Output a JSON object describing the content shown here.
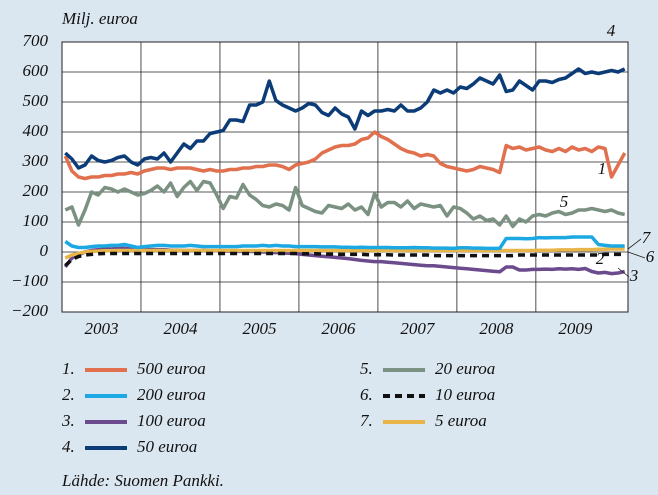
{
  "chart_data": {
    "type": "line",
    "y_label": "Milj. euroa",
    "source": "Lähde: Suomen Pankki.",
    "categories": [
      "2003",
      null,
      null,
      null,
      null,
      null,
      null,
      null,
      null,
      null,
      null,
      null,
      "2004",
      null,
      null,
      null,
      null,
      null,
      null,
      null,
      null,
      null,
      null,
      null,
      "2005",
      null,
      null,
      null,
      null,
      null,
      null,
      null,
      null,
      null,
      null,
      null,
      "2006",
      null,
      null,
      null,
      null,
      null,
      null,
      null,
      null,
      null,
      null,
      null,
      "2007",
      null,
      null,
      null,
      null,
      null,
      null,
      null,
      null,
      null,
      null,
      null,
      "2008",
      null,
      null,
      null,
      null,
      null,
      null,
      null,
      null,
      null,
      null,
      null,
      "2009",
      null,
      null,
      null,
      null,
      null,
      null,
      null,
      null,
      null,
      null,
      null,
      null,
      null
    ],
    "ylim": [
      -200,
      700
    ],
    "yticks": [
      {
        "value": -200,
        "label": "−200"
      },
      {
        "value": -100,
        "label": "−100"
      },
      0,
      100,
      200,
      300,
      400,
      500,
      600,
      700
    ],
    "grid": true,
    "series": [
      {
        "key": "1.",
        "annotation": "1",
        "name": "500 euroa",
        "color": "#e0704e",
        "dashed": false,
        "values": [
          320,
          270,
          250,
          245,
          250,
          250,
          255,
          255,
          260,
          260,
          265,
          260,
          270,
          275,
          280,
          280,
          275,
          280,
          280,
          280,
          275,
          270,
          275,
          270,
          270,
          275,
          275,
          280,
          280,
          285,
          285,
          290,
          290,
          285,
          275,
          290,
          295,
          300,
          310,
          330,
          340,
          350,
          355,
          355,
          360,
          375,
          380,
          400,
          385,
          375,
          360,
          345,
          335,
          330,
          320,
          325,
          320,
          295,
          285,
          280,
          275,
          270,
          275,
          285,
          280,
          275,
          265,
          355,
          345,
          350,
          340,
          345,
          350,
          340,
          335,
          345,
          335,
          350,
          340,
          345,
          335,
          350,
          345,
          250,
          290,
          330
        ]
      },
      {
        "key": "2.",
        "annotation": "2",
        "name": "200 euroa",
        "color": "#1ca8e2",
        "dashed": false,
        "values": [
          35,
          20,
          15,
          15,
          18,
          20,
          20,
          22,
          22,
          25,
          20,
          15,
          18,
          20,
          22,
          22,
          20,
          20,
          20,
          22,
          20,
          18,
          18,
          18,
          18,
          18,
          18,
          20,
          20,
          20,
          22,
          20,
          22,
          20,
          20,
          18,
          18,
          18,
          18,
          17,
          17,
          17,
          16,
          16,
          15,
          16,
          15,
          15,
          15,
          15,
          14,
          14,
          14,
          15,
          14,
          14,
          13,
          13,
          13,
          12,
          14,
          14,
          13,
          13,
          12,
          12,
          12,
          45,
          45,
          45,
          44,
          45,
          48,
          47,
          48,
          48,
          48,
          50,
          50,
          50,
          50,
          25,
          22,
          20,
          20,
          20
        ]
      },
      {
        "key": "3.",
        "annotation": "3",
        "name": "100 euroa",
        "color": "#6b4a8e",
        "dashed": false,
        "values": [
          -50,
          -20,
          -10,
          0,
          5,
          8,
          10,
          10,
          12,
          12,
          10,
          8,
          8,
          8,
          8,
          8,
          6,
          6,
          5,
          5,
          5,
          5,
          4,
          4,
          3,
          3,
          2,
          2,
          2,
          1,
          0,
          0,
          -2,
          -3,
          -4,
          -5,
          -8,
          -10,
          -12,
          -14,
          -16,
          -18,
          -20,
          -22,
          -25,
          -28,
          -30,
          -32,
          -32,
          -34,
          -36,
          -38,
          -40,
          -42,
          -44,
          -46,
          -46,
          -48,
          -50,
          -52,
          -54,
          -56,
          -58,
          -60,
          -62,
          -64,
          -66,
          -50,
          -50,
          -60,
          -60,
          -58,
          -58,
          -57,
          -58,
          -56,
          -57,
          -56,
          -58,
          -55,
          -65,
          -70,
          -68,
          -72,
          -70,
          -65
        ]
      },
      {
        "key": "4.",
        "annotation": "4",
        "name": "50 euroa",
        "color": "#0c3c78",
        "dashed": false,
        "values": [
          330,
          310,
          280,
          290,
          320,
          305,
          300,
          305,
          315,
          320,
          300,
          290,
          310,
          315,
          310,
          330,
          300,
          330,
          360,
          345,
          370,
          370,
          395,
          400,
          405,
          440,
          440,
          435,
          490,
          490,
          500,
          570,
          505,
          490,
          480,
          470,
          480,
          495,
          490,
          465,
          455,
          480,
          460,
          450,
          410,
          470,
          455,
          470,
          470,
          475,
          470,
          490,
          470,
          470,
          480,
          500,
          540,
          530,
          540,
          530,
          550,
          545,
          560,
          580,
          570,
          560,
          590,
          535,
          540,
          570,
          555,
          540,
          570,
          570,
          565,
          575,
          580,
          595,
          610,
          595,
          600,
          595,
          600,
          605,
          600,
          610
        ]
      },
      {
        "key": "5.",
        "annotation": "5",
        "name": "20 euroa",
        "color": "#7b9181",
        "dashed": false,
        "values": [
          140,
          150,
          90,
          140,
          200,
          190,
          215,
          210,
          200,
          210,
          200,
          190,
          195,
          205,
          220,
          200,
          230,
          185,
          215,
          235,
          205,
          235,
          230,
          190,
          145,
          185,
          180,
          225,
          190,
          175,
          155,
          150,
          160,
          155,
          140,
          215,
          155,
          145,
          135,
          130,
          155,
          150,
          145,
          160,
          140,
          150,
          125,
          195,
          150,
          165,
          165,
          150,
          170,
          145,
          160,
          155,
          150,
          155,
          120,
          150,
          145,
          130,
          110,
          120,
          105,
          110,
          90,
          120,
          85,
          110,
          100,
          120,
          125,
          120,
          130,
          135,
          125,
          130,
          140,
          140,
          145,
          140,
          135,
          140,
          130,
          125
        ]
      },
      {
        "key": "6.",
        "annotation": "6",
        "name": "10 euroa",
        "color": "#111111",
        "dashed": true,
        "values": [
          -45,
          -25,
          -15,
          -10,
          -8,
          -6,
          -5,
          -5,
          -5,
          -5,
          -5,
          -5,
          -5,
          -5,
          -5,
          -5,
          -5,
          -5,
          -5,
          -5,
          -5,
          -5,
          -5,
          -5,
          -5,
          -5,
          -5,
          -5,
          -5,
          -5,
          -5,
          -5,
          -5,
          -5,
          -5,
          -5,
          -6,
          -6,
          -6,
          -7,
          -7,
          -7,
          -8,
          -8,
          -8,
          -8,
          -9,
          -9,
          -9,
          -9,
          -10,
          -10,
          -10,
          -10,
          -10,
          -10,
          -12,
          -12,
          -12,
          -12,
          -12,
          -12,
          -12,
          -12,
          -12,
          -12,
          -12,
          -12,
          -12,
          -10,
          -10,
          -10,
          -10,
          -10,
          -10,
          -10,
          -10,
          -10,
          -10,
          -10,
          -10,
          -10,
          -8,
          -8,
          -8,
          -8
        ]
      },
      {
        "key": "7.",
        "annotation": "7",
        "name": "5 euroa",
        "color": "#e8b54a",
        "dashed": false,
        "values": [
          -20,
          -10,
          -5,
          0,
          2,
          3,
          4,
          4,
          5,
          5,
          5,
          5,
          5,
          5,
          5,
          5,
          5,
          5,
          5,
          5,
          5,
          5,
          5,
          5,
          5,
          5,
          5,
          5,
          5,
          5,
          5,
          5,
          5,
          5,
          5,
          5,
          5,
          5,
          5,
          5,
          5,
          5,
          5,
          5,
          5,
          5,
          5,
          5,
          5,
          5,
          5,
          5,
          5,
          5,
          5,
          5,
          5,
          5,
          5,
          5,
          5,
          5,
          5,
          5,
          5,
          5,
          5,
          5,
          5,
          5,
          5,
          5,
          6,
          6,
          6,
          7,
          7,
          7,
          8,
          8,
          8,
          9,
          9,
          10,
          10,
          10
        ]
      }
    ]
  }
}
